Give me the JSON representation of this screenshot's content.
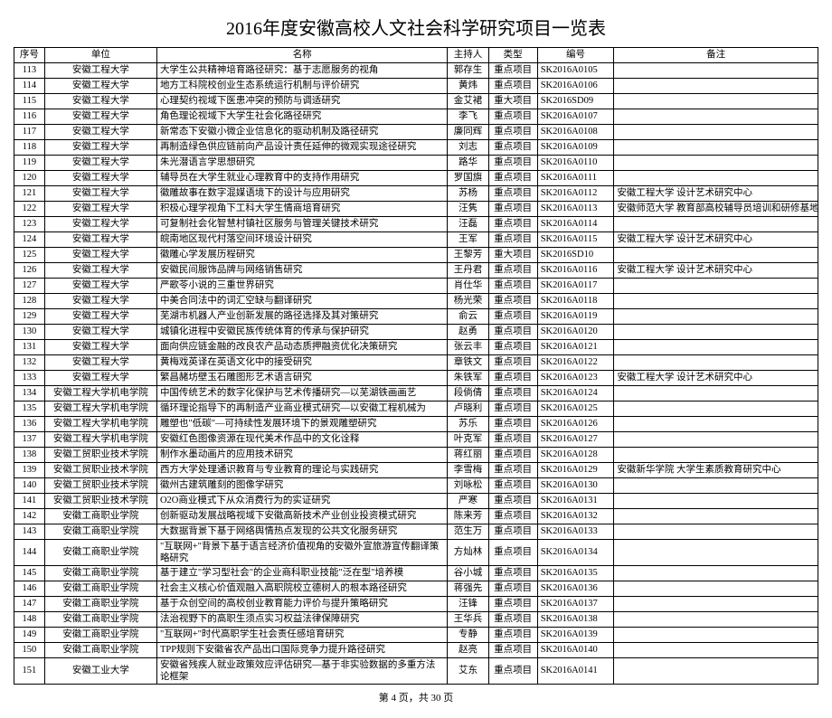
{
  "title": "2016年度安徽高校人文社会科学研究项目一览表",
  "columns": [
    "序号",
    "单位",
    "名称",
    "主持人",
    "类型",
    "编号",
    "备注"
  ],
  "rows": [
    {
      "seq": "113",
      "unit": "安徽工程大学",
      "name": "大学生公共精神培育路径研究：基于志愿服务的视角",
      "host": "郭存生",
      "type": "重点项目",
      "code": "SK2016A0105",
      "note": ""
    },
    {
      "seq": "114",
      "unit": "安徽工程大学",
      "name": "地方工科院校创业生态系统运行机制与评价研究",
      "host": "黄炜",
      "type": "重点项目",
      "code": "SK2016A0106",
      "note": ""
    },
    {
      "seq": "115",
      "unit": "安徽工程大学",
      "name": "心理契约视域下医患冲突的预防与调适研究",
      "host": "金艾裙",
      "type": "重大项目",
      "code": "SK2016SD09",
      "note": ""
    },
    {
      "seq": "116",
      "unit": "安徽工程大学",
      "name": "角色理论视域下大学生社会化路径研究",
      "host": "李飞",
      "type": "重点项目",
      "code": "SK2016A0107",
      "note": ""
    },
    {
      "seq": "117",
      "unit": "安徽工程大学",
      "name": "新常态下安徽小微企业信息化的驱动机制及路径研究",
      "host": "廉同辉",
      "type": "重点项目",
      "code": "SK2016A0108",
      "note": ""
    },
    {
      "seq": "118",
      "unit": "安徽工程大学",
      "name": "再制造绿色供应链前向产品设计责任延伸的微观实现途径研究",
      "host": "刘志",
      "type": "重点项目",
      "code": "SK2016A0109",
      "note": ""
    },
    {
      "seq": "119",
      "unit": "安徽工程大学",
      "name": "朱光潜语言学思想研究",
      "host": "路华",
      "type": "重点项目",
      "code": "SK2016A0110",
      "note": ""
    },
    {
      "seq": "120",
      "unit": "安徽工程大学",
      "name": "辅导员在大学生就业心理教育中的支持作用研究",
      "host": "罗国旗",
      "type": "重点项目",
      "code": "SK2016A0111",
      "note": ""
    },
    {
      "seq": "121",
      "unit": "安徽工程大学",
      "name": "徽雕故事在数字混媒语境下的设计与应用研究",
      "host": "苏杨",
      "type": "重点项目",
      "code": "SK2016A0112",
      "note": "安徽工程大学 设计艺术研究中心"
    },
    {
      "seq": "122",
      "unit": "安徽工程大学",
      "name": "积极心理学视角下工科大学生情商培育研究",
      "host": "汪隽",
      "type": "重点项目",
      "code": "SK2016A0113",
      "note": "安徽师范大学 教育部高校辅导员培训和研修基地"
    },
    {
      "seq": "123",
      "unit": "安徽工程大学",
      "name": "可复制社会化智慧村镇社区服务与管理关键技术研究",
      "host": "汪磊",
      "type": "重点项目",
      "code": "SK2016A0114",
      "note": ""
    },
    {
      "seq": "124",
      "unit": "安徽工程大学",
      "name": "皖南地区现代村落空间环境设计研究",
      "host": "王军",
      "type": "重点项目",
      "code": "SK2016A0115",
      "note": "安徽工程大学 设计艺术研究中心"
    },
    {
      "seq": "125",
      "unit": "安徽工程大学",
      "name": "徽雕心学发展历程研究",
      "host": "王黎芳",
      "type": "重大项目",
      "code": "SK2016SD10",
      "note": ""
    },
    {
      "seq": "126",
      "unit": "安徽工程大学",
      "name": "安徽民间服饰品牌与网络销售研究",
      "host": "王丹君",
      "type": "重点项目",
      "code": "SK2016A0116",
      "note": "安徽工程大学 设计艺术研究中心"
    },
    {
      "seq": "127",
      "unit": "安徽工程大学",
      "name": "严歌苓小说的三重世界研究",
      "host": "肖仕华",
      "type": "重点项目",
      "code": "SK2016A0117",
      "note": ""
    },
    {
      "seq": "128",
      "unit": "安徽工程大学",
      "name": "中美合同法中的词汇空缺与翻译研究",
      "host": "杨光荣",
      "type": "重点项目",
      "code": "SK2016A0118",
      "note": ""
    },
    {
      "seq": "129",
      "unit": "安徽工程大学",
      "name": "芜湖市机器人产业创新发展的路径选择及其对策研究",
      "host": "俞云",
      "type": "重点项目",
      "code": "SK2016A0119",
      "note": ""
    },
    {
      "seq": "130",
      "unit": "安徽工程大学",
      "name": "城镇化进程中安徽民族传统体育的传承与保护研究",
      "host": "赵勇",
      "type": "重点项目",
      "code": "SK2016A0120",
      "note": ""
    },
    {
      "seq": "131",
      "unit": "安徽工程大学",
      "name": "面向供应链金融的改良农产品动态质押融资优化决策研究",
      "host": "张云丰",
      "type": "重点项目",
      "code": "SK2016A0121",
      "note": ""
    },
    {
      "seq": "132",
      "unit": "安徽工程大学",
      "name": "黄梅戏英译在英语文化中的接受研究",
      "host": "章铁文",
      "type": "重点项目",
      "code": "SK2016A0122",
      "note": ""
    },
    {
      "seq": "133",
      "unit": "安徽工程大学",
      "name": "繁昌赭坊壁玉石雕图形艺术语言研究",
      "host": "朱铁军",
      "type": "重点项目",
      "code": "SK2016A0123",
      "note": "安徽工程大学 设计艺术研究中心"
    },
    {
      "seq": "134",
      "unit": "安徽工程大学机电学院",
      "name": "中国传统艺术的数字化保护与艺术传播研究—以芜湖铁画画艺",
      "host": "段倘倩",
      "type": "重点项目",
      "code": "SK2016A0124",
      "note": ""
    },
    {
      "seq": "135",
      "unit": "安徽工程大学机电学院",
      "name": "循环理论指导下的再制造产业商业模式研究—以安徽工程机械为",
      "host": "卢晓利",
      "type": "重点项目",
      "code": "SK2016A0125",
      "note": ""
    },
    {
      "seq": "136",
      "unit": "安徽工程大学机电学院",
      "name": "雕塑也\"低碳\"—可持续性发展环境下的景观雕塑研究",
      "host": "苏乐",
      "type": "重点项目",
      "code": "SK2016A0126",
      "note": ""
    },
    {
      "seq": "137",
      "unit": "安徽工程大学机电学院",
      "name": "安徽红色图像资源在现代美术作品中的文化诠释",
      "host": "叶克军",
      "type": "重点项目",
      "code": "SK2016A0127",
      "note": ""
    },
    {
      "seq": "138",
      "unit": "安徽工贸职业技术学院",
      "name": "制作水墨动画片的应用技术研究",
      "host": "蒋红丽",
      "type": "重点项目",
      "code": "SK2016A0128",
      "note": ""
    },
    {
      "seq": "139",
      "unit": "安徽工贸职业技术学院",
      "name": "西方大学处理通识教育与专业教育的理论与实践研究",
      "host": "李雪梅",
      "type": "重点项目",
      "code": "SK2016A0129",
      "note": "安徽新华学院 大学生素质教育研究中心"
    },
    {
      "seq": "140",
      "unit": "安徽工贸职业技术学院",
      "name": "徽州古建筑雕刻的图像学研究",
      "host": "刘咏松",
      "type": "重点项目",
      "code": "SK2016A0130",
      "note": ""
    },
    {
      "seq": "141",
      "unit": "安徽工贸职业技术学院",
      "name": "O2O商业模式下从众消费行为的实证研究",
      "host": "严寒",
      "type": "重点项目",
      "code": "SK2016A0131",
      "note": ""
    },
    {
      "seq": "142",
      "unit": "安徽工商职业学院",
      "name": "创新驱动发展战略视域下安徽高新技术产业创业投资模式研究",
      "host": "陈来芳",
      "type": "重点项目",
      "code": "SK2016A0132",
      "note": ""
    },
    {
      "seq": "143",
      "unit": "安徽工商职业学院",
      "name": "大数据背景下基于网络舆情热点发现的公共文化服务研究",
      "host": "范生万",
      "type": "重点项目",
      "code": "SK2016A0133",
      "note": ""
    },
    {
      "seq": "144",
      "unit": "安徽工商职业学院",
      "name": "\"互联网+\"背景下基于语言经济价值视角的安徽外宣旅游宣传翻译策略研究",
      "host": "方灿林",
      "type": "重点项目",
      "code": "SK2016A0134",
      "note": "",
      "multiline": true
    },
    {
      "seq": "145",
      "unit": "安徽工商职业学院",
      "name": "基于建立\"学习型社会\"的企业商科职业技能\"泛在型\"培养模",
      "host": "谷小城",
      "type": "重点项目",
      "code": "SK2016A0135",
      "note": ""
    },
    {
      "seq": "146",
      "unit": "安徽工商职业学院",
      "name": "社会主义核心价值观融入高职院校立德树人的根本路径研究",
      "host": "蒋强先",
      "type": "重点项目",
      "code": "SK2016A0136",
      "note": ""
    },
    {
      "seq": "147",
      "unit": "安徽工商职业学院",
      "name": "基于众创空间的高校创业教育能力评价与提升策略研究",
      "host": "汪锋",
      "type": "重点项目",
      "code": "SK2016A0137",
      "note": ""
    },
    {
      "seq": "148",
      "unit": "安徽工商职业学院",
      "name": "法治视野下的高职生须点实习权益法律保障研究",
      "host": "王华兵",
      "type": "重点项目",
      "code": "SK2016A0138",
      "note": ""
    },
    {
      "seq": "149",
      "unit": "安徽工商职业学院",
      "name": "\"互联网+\"时代高职学生社会责任感培育研究",
      "host": "专静",
      "type": "重点项目",
      "code": "SK2016A0139",
      "note": ""
    },
    {
      "seq": "150",
      "unit": "安徽工商职业学院",
      "name": "TPP规则下安徽省农产品出口国际竞争力提升路径研究",
      "host": "赵亮",
      "type": "重点项目",
      "code": "SK2016A0140",
      "note": ""
    },
    {
      "seq": "151",
      "unit": "安徽工业大学",
      "name": "安徽省残疾人就业政策效应评估研究—基于非实验数据的多重方法论框架",
      "host": "艾东",
      "type": "重点项目",
      "code": "SK2016A0141",
      "note": "",
      "multiline": true
    }
  ],
  "footer": "第 4 页，共 30 页"
}
